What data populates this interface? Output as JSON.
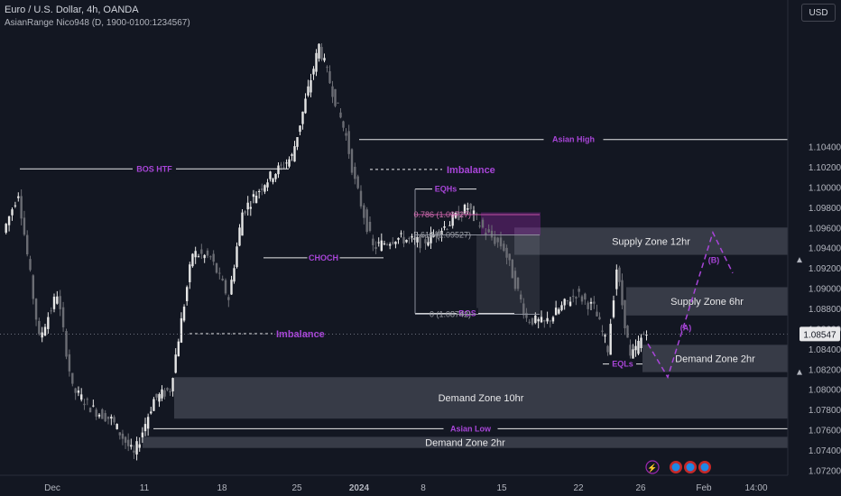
{
  "header": {
    "symbol_title": "Euro / U.S. Dollar, 4h, OANDA",
    "indicator": "AsianRange Nico948 (D, 1900-0100:1234567)",
    "currency": "USD"
  },
  "colors": {
    "background": "#131722",
    "candle_up": "#e6e6e6",
    "candle_down": "#6b6d74",
    "annotation": "#a845d8",
    "zone_fill": "#565a66",
    "axis_text": "#b2b5be"
  },
  "chart_data": {
    "type": "candlestick",
    "ylim": [
      1.0715,
      1.1185
    ],
    "y_ticks": [
      "1.10400",
      "1.10200",
      "1.10000",
      "1.09800",
      "1.09600",
      "1.09400",
      "1.09200",
      "1.09000",
      "1.08800",
      "1.08600",
      "1.08400",
      "1.08200",
      "1.08000",
      "1.07800",
      "1.07600",
      "1.07400",
      "1.07200"
    ],
    "x_ticks": [
      "Dec",
      "11",
      "18",
      "25",
      "2024",
      "8",
      "15",
      "22",
      "26",
      "Feb",
      "14:00"
    ],
    "last_price": "1.08547",
    "waypoints": [
      {
        "t": "Dec",
        "price": 1.0955
      },
      {
        "t": "Dec 1",
        "price": 1.0995
      },
      {
        "t": "Dec 2",
        "price": 1.085
      },
      {
        "t": "Dec 3",
        "price": 1.0895
      },
      {
        "t": "Dec 4",
        "price": 1.08
      },
      {
        "t": "Dec 6",
        "price": 1.078
      },
      {
        "t": "Dec 8",
        "price": 1.077
      },
      {
        "t": "Dec 10",
        "price": 1.0735
      },
      {
        "t": "Dec 12",
        "price": 1.079
      },
      {
        "t": "Dec 13",
        "price": 1.08
      },
      {
        "t": "Dec 14",
        "price": 1.0935
      },
      {
        "t": "Dec 15",
        "price": 1.093
      },
      {
        "t": "Dec 18",
        "price": 1.089
      },
      {
        "t": "Dec 19",
        "price": 1.0975
      },
      {
        "t": "Dec 21",
        "price": 1.1005
      },
      {
        "t": "Dec 25",
        "price": 1.103
      },
      {
        "t": "Dec 28",
        "price": 1.114
      },
      {
        "t": "Dec 29",
        "price": 1.105
      },
      {
        "t": "2024",
        "price": 1.1005
      },
      {
        "t": "Jan 3",
        "price": 1.094
      },
      {
        "t": "Jan 5",
        "price": 1.095
      },
      {
        "t": "Jan 8",
        "price": 1.0945
      },
      {
        "t": "Jan 10",
        "price": 1.0965
      },
      {
        "t": "Jan 11",
        "price": 1.098
      },
      {
        "t": "Jan 12",
        "price": 1.0955
      },
      {
        "t": "Jan 15",
        "price": 1.094
      },
      {
        "t": "Jan 16",
        "price": 1.087
      },
      {
        "t": "Jan 17",
        "price": 1.0865
      },
      {
        "t": "Jan 19",
        "price": 1.0895
      },
      {
        "t": "Jan 22",
        "price": 1.088
      },
      {
        "t": "Jan 23",
        "price": 1.084
      },
      {
        "t": "Jan 24",
        "price": 1.092
      },
      {
        "t": "Jan 25",
        "price": 1.083
      },
      {
        "t": "Jan 26",
        "price": 1.086
      }
    ],
    "zones": [
      {
        "label": "Supply Zone 12hr",
        "top": 1.096,
        "bottom": 1.0933
      },
      {
        "label": "Supply Zone 6hr",
        "top": 1.0901,
        "bottom": 1.0873
      },
      {
        "label": "Demand Zone 2hr",
        "top": 1.0844,
        "bottom": 1.0817
      },
      {
        "label": "Demand Zone 10hr",
        "top": 1.0812,
        "bottom": 1.0771
      },
      {
        "label": "Demand Zone 2hr",
        "top": 1.0753,
        "bottom": 1.0742
      }
    ],
    "levels": [
      {
        "label": "Asian High",
        "price": 1.1047
      },
      {
        "label": "Asian Low",
        "price": 1.0761
      },
      {
        "label": "BOS HTF",
        "price": 1.1018
      },
      {
        "label": "CHOCH",
        "price": 1.093
      },
      {
        "label": "EQHs",
        "price": 1.0998
      },
      {
        "label": "EQLs",
        "price": 1.0825
      },
      {
        "label": "BOS",
        "price": 1.0875
      }
    ],
    "fib_levels": [
      {
        "label": "0.786 (1.09727)",
        "price": 1.09727
      },
      {
        "label": "0.618 (1.09527)",
        "price": 1.09527
      },
      {
        "label": "0 (1.08742)",
        "price": 1.08742
      }
    ],
    "annotations": [
      "Imbalance",
      "Imbalance"
    ],
    "projection_labels": [
      "(A)",
      "(B)"
    ]
  }
}
